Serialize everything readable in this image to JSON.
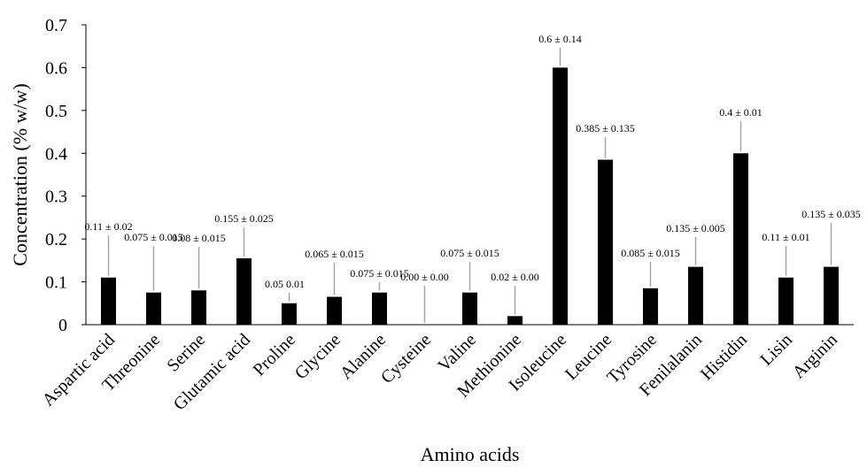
{
  "chart_data": {
    "type": "bar",
    "title": "",
    "xlabel": "Amino acids",
    "ylabel": "Concentration (% w/w)",
    "ylim": [
      0,
      0.7
    ],
    "yticks": [
      "0",
      "0.1",
      "0.2",
      "0.3",
      "0.4",
      "0.5",
      "0.6",
      "0.7"
    ],
    "grid": false,
    "legend": "none",
    "bar_color": "#000000",
    "leader_color": "#a6a6a6",
    "categories": [
      "Aspartic acid",
      "Threonine",
      "Serine",
      "Glutamic acid",
      "Proline",
      "Glycine",
      "Alanine",
      "Cysteine",
      "Valine",
      "Methionine",
      "Isoleucine",
      "Leucine",
      "Tyrosine",
      "Fenilalanin",
      "Histidin",
      "Lisin",
      "Arginin"
    ],
    "values": [
      0.11,
      0.075,
      0.08,
      0.155,
      0.05,
      0.065,
      0.075,
      0.0,
      0.075,
      0.02,
      0.6,
      0.385,
      0.085,
      0.135,
      0.4,
      0.11,
      0.135
    ],
    "errors": [
      0.02,
      0.015,
      0.015,
      0.025,
      0.01,
      0.015,
      0.015,
      0.0,
      0.015,
      0.0,
      0.14,
      0.135,
      0.015,
      0.005,
      0.01,
      0.01,
      0.035
    ],
    "data_labels": [
      "0.11 ± 0.02",
      "0.075 ± 0.015",
      "0.08 ± 0.015",
      "0.155 ± 0.025",
      "0.05 0.01",
      "0.065 ± 0.015",
      "0.075  ± 0.015",
      "0.00 ± 0.00",
      "0.075 ± 0.015",
      "0.02 ± 0.00",
      "0.6 ± 0.14",
      "0.385 ± 0.135",
      "0.085 ± 0.015",
      "0.135 ± 0.005",
      "0.4 ± 0.01",
      "0.11 ± 0.01",
      "0.135 ± 0.035"
    ]
  }
}
